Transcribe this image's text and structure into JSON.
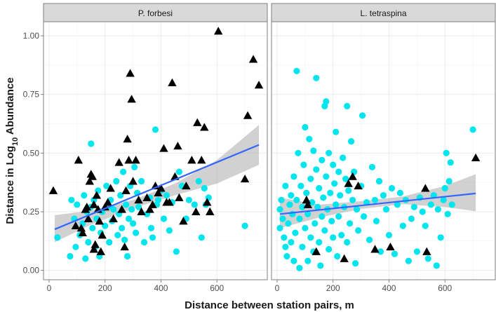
{
  "chart_data": {
    "type": "scatter",
    "facets": [
      "P. forbesi",
      "L. tetraspina"
    ],
    "xlabel": "Distance between station pairs, m",
    "ylabel": {
      "prefix": "Distance in Log",
      "subscript": "10",
      "suffix": " Abundance"
    },
    "xlim": [
      -20,
      780
    ],
    "ylim": [
      -0.04,
      1.06
    ],
    "x_ticks": [
      0,
      200,
      400,
      600
    ],
    "y_ticks": [
      0.0,
      0.25,
      0.5,
      0.75,
      1.0
    ],
    "y_tick_labels": [
      "0.00",
      "0.25",
      "0.50",
      "0.75",
      "1.00"
    ],
    "grid": true,
    "colors": {
      "circles": "#00e5ee",
      "triangles": "#000000",
      "fit_line": "#3366ff",
      "ribbon": "#b3b3b3",
      "strip_bg": "#d9d9d9",
      "panel_border": "#7f7f7f",
      "grid": "#ebebeb"
    },
    "panels": [
      {
        "name": "P. forbesi",
        "fit": {
          "x": [
            20,
            750
          ],
          "y": [
            0.175,
            0.535
          ]
        },
        "ribbon": {
          "x": [
            20,
            150,
            300,
            450,
            600,
            750
          ],
          "lo": [
            0.12,
            0.195,
            0.265,
            0.32,
            0.37,
            0.45
          ],
          "hi": [
            0.235,
            0.255,
            0.3,
            0.37,
            0.47,
            0.62
          ]
        },
        "circles": [
          [
            30,
            0.14
          ],
          [
            75,
            0.06
          ],
          [
            80,
            0.3
          ],
          [
            90,
            0.22
          ],
          [
            95,
            0.1
          ],
          [
            100,
            0.28
          ],
          [
            110,
            0.15
          ],
          [
            120,
            0.2
          ],
          [
            125,
            0.32
          ],
          [
            130,
            0.05
          ],
          [
            135,
            0.25
          ],
          [
            140,
            0.12
          ],
          [
            150,
            0.27
          ],
          [
            150,
            0.54
          ],
          [
            155,
            0.18
          ],
          [
            160,
            0.3
          ],
          [
            165,
            0.1
          ],
          [
            170,
            0.22
          ],
          [
            175,
            0.34
          ],
          [
            180,
            0.06
          ],
          [
            185,
            0.16
          ],
          [
            190,
            0.25
          ],
          [
            200,
            0.19
          ],
          [
            205,
            0.36
          ],
          [
            210,
            0.27
          ],
          [
            215,
            0.12
          ],
          [
            220,
            0.3
          ],
          [
            225,
            0.21
          ],
          [
            230,
            0.26
          ],
          [
            240,
            0.38
          ],
          [
            245,
            0.15
          ],
          [
            250,
            0.24
          ],
          [
            255,
            0.32
          ],
          [
            260,
            0.18
          ],
          [
            265,
            0.42
          ],
          [
            270,
            0.13
          ],
          [
            275,
            0.28
          ],
          [
            280,
            0.06
          ],
          [
            285,
            0.22
          ],
          [
            290,
            0.36
          ],
          [
            295,
            0.26
          ],
          [
            300,
            0.2
          ],
          [
            305,
            0.44
          ],
          [
            310,
            0.16
          ],
          [
            315,
            0.33
          ],
          [
            320,
            0.27
          ],
          [
            330,
            0.38
          ],
          [
            340,
            0.12
          ],
          [
            350,
            0.24
          ],
          [
            360,
            0.31
          ],
          [
            365,
            0.18
          ],
          [
            370,
            0.14
          ],
          [
            380,
            0.6
          ],
          [
            385,
            0.28
          ],
          [
            390,
            0.3
          ],
          [
            400,
            0.34
          ],
          [
            410,
            0.22
          ],
          [
            420,
            0.32
          ],
          [
            430,
            0.17
          ],
          [
            440,
            0.29
          ],
          [
            455,
            0.08
          ],
          [
            465,
            0.42
          ],
          [
            475,
            0.36
          ],
          [
            490,
            0.22
          ],
          [
            500,
            0.3
          ],
          [
            520,
            0.28
          ],
          [
            535,
            0.38
          ],
          [
            545,
            0.14
          ],
          [
            555,
            0.35
          ],
          [
            560,
            0.28
          ],
          [
            570,
            0.31
          ],
          [
            700,
            0.19
          ]
        ],
        "triangles": [
          [
            15,
            0.34
          ],
          [
            95,
            0.19
          ],
          [
            105,
            0.47
          ],
          [
            115,
            0.18
          ],
          [
            120,
            0.16
          ],
          [
            130,
            0.26
          ],
          [
            135,
            0.27
          ],
          [
            140,
            0.22
          ],
          [
            145,
            0.38
          ],
          [
            150,
            0.41
          ],
          [
            155,
            0.4
          ],
          [
            160,
            0.09
          ],
          [
            160,
            0.28
          ],
          [
            165,
            0.11
          ],
          [
            170,
            0.32
          ],
          [
            175,
            0.26
          ],
          [
            180,
            0.21
          ],
          [
            185,
            0.08
          ],
          [
            190,
            0.15
          ],
          [
            200,
            0.27
          ],
          [
            210,
            0.29
          ],
          [
            220,
            0.35
          ],
          [
            230,
            0.22
          ],
          [
            250,
            0.46
          ],
          [
            260,
            0.26
          ],
          [
            270,
            0.1
          ],
          [
            275,
            0.34
          ],
          [
            280,
            0.56
          ],
          [
            285,
            0.47
          ],
          [
            290,
            0.84
          ],
          [
            295,
            0.73
          ],
          [
            300,
            0.38
          ],
          [
            310,
            0.47
          ],
          [
            320,
            0.3
          ],
          [
            330,
            0.25
          ],
          [
            350,
            0.31
          ],
          [
            360,
            0.26
          ],
          [
            370,
            0.28
          ],
          [
            380,
            0.36
          ],
          [
            390,
            0.33
          ],
          [
            400,
            0.35
          ],
          [
            410,
            0.52
          ],
          [
            420,
            0.29
          ],
          [
            430,
            0.29
          ],
          [
            440,
            0.8
          ],
          [
            450,
            0.4
          ],
          [
            460,
            0.53
          ],
          [
            465,
            0.31
          ],
          [
            480,
            0.21
          ],
          [
            490,
            0.36
          ],
          [
            510,
            0.47
          ],
          [
            525,
            0.25
          ],
          [
            530,
            0.63
          ],
          [
            545,
            0.47
          ],
          [
            555,
            0.61
          ],
          [
            565,
            0.29
          ],
          [
            575,
            0.25
          ],
          [
            605,
            1.02
          ],
          [
            700,
            0.39
          ],
          [
            710,
            0.66
          ],
          [
            730,
            0.9
          ],
          [
            750,
            0.79
          ]
        ]
      },
      {
        "name": "L. tetraspina",
        "fit": {
          "x": [
            10,
            710
          ],
          "y": [
            0.24,
            0.328
          ]
        },
        "ribbon": {
          "x": [
            10,
            150,
            300,
            450,
            600,
            710
          ],
          "lo": [
            0.18,
            0.225,
            0.262,
            0.282,
            0.27,
            0.252
          ],
          "hi": [
            0.31,
            0.28,
            0.295,
            0.315,
            0.36,
            0.41
          ]
        },
        "circles": [
          [
            10,
            0.26
          ],
          [
            10,
            0.18
          ],
          [
            15,
            0.3
          ],
          [
            20,
            0.22
          ],
          [
            25,
            0.14
          ],
          [
            30,
            0.1
          ],
          [
            30,
            0.36
          ],
          [
            35,
            0.06
          ],
          [
            40,
            0.2
          ],
          [
            45,
            0.28
          ],
          [
            50,
            0.32
          ],
          [
            50,
            0.12
          ],
          [
            55,
            0.24
          ],
          [
            60,
            0.4
          ],
          [
            60,
            0.04
          ],
          [
            65,
            0.16
          ],
          [
            70,
            0.85
          ],
          [
            70,
            0.3
          ],
          [
            75,
            0.5
          ],
          [
            80,
            0.01
          ],
          [
            80,
            0.22
          ],
          [
            85,
            0.36
          ],
          [
            90,
            0.1
          ],
          [
            90,
            0.27
          ],
          [
            95,
            0.45
          ],
          [
            100,
            0.61
          ],
          [
            100,
            0.18
          ],
          [
            105,
            0.33
          ],
          [
            110,
            0.04
          ],
          [
            110,
            0.24
          ],
          [
            115,
            0.56
          ],
          [
            120,
            0.14
          ],
          [
            120,
            0.39
          ],
          [
            125,
            0.29
          ],
          [
            130,
            0.08
          ],
          [
            130,
            0.51
          ],
          [
            135,
            0.2
          ],
          [
            140,
            0.43
          ],
          [
            140,
            0.82
          ],
          [
            145,
            0.27
          ],
          [
            150,
            0.35
          ],
          [
            150,
            0.12
          ],
          [
            155,
            0.02
          ],
          [
            160,
            0.23
          ],
          [
            160,
            0.47
          ],
          [
            165,
            0.31
          ],
          [
            170,
            0.17
          ],
          [
            170,
            0.7
          ],
          [
            175,
            0.72
          ],
          [
            175,
            0.4
          ],
          [
            180,
            0.26
          ],
          [
            185,
            0.09
          ],
          [
            185,
            0.5
          ],
          [
            190,
            0.33
          ],
          [
            195,
            0.21
          ],
          [
            200,
            0.45
          ],
          [
            200,
            0.14
          ],
          [
            205,
            0.37
          ],
          [
            210,
            0.59
          ],
          [
            210,
            0.28
          ],
          [
            215,
            0.06
          ],
          [
            220,
            0.42
          ],
          [
            220,
            0.23
          ],
          [
            225,
            0.32
          ],
          [
            230,
            0.15
          ],
          [
            235,
            0.48
          ],
          [
            240,
            0.27
          ],
          [
            245,
            0.39
          ],
          [
            250,
            0.7
          ],
          [
            250,
            0.12
          ],
          [
            255,
            0.34
          ],
          [
            260,
            0.2
          ],
          [
            265,
            0.55
          ],
          [
            270,
            0.3
          ],
          [
            275,
            0.42
          ],
          [
            280,
            0.03
          ],
          [
            285,
            0.26
          ],
          [
            290,
            0.17
          ],
          [
            300,
            0.36
          ],
          [
            305,
            0.66
          ],
          [
            310,
            0.23
          ],
          [
            320,
            0.29
          ],
          [
            330,
            0.13
          ],
          [
            340,
            0.44
          ],
          [
            350,
            0.3
          ],
          [
            355,
            0.21
          ],
          [
            365,
            0.38
          ],
          [
            370,
            0.08
          ],
          [
            380,
            0.32
          ],
          [
            390,
            0.26
          ],
          [
            400,
            0.15
          ],
          [
            410,
            0.35
          ],
          [
            420,
            0.07
          ],
          [
            430,
            0.28
          ],
          [
            440,
            0.33
          ],
          [
            450,
            0.19
          ],
          [
            460,
            0.3
          ],
          [
            470,
            0.04
          ],
          [
            480,
            0.22
          ],
          [
            490,
            0.27
          ],
          [
            500,
            0.08
          ],
          [
            510,
            0.31
          ],
          [
            520,
            0.25
          ],
          [
            530,
            0.19
          ],
          [
            540,
            0.05
          ],
          [
            550,
            0.28
          ],
          [
            560,
            0.32
          ],
          [
            570,
            0.02
          ],
          [
            575,
            0.26
          ],
          [
            585,
            0.14
          ],
          [
            595,
            0.3
          ],
          [
            600,
            0.35
          ],
          [
            605,
            0.5
          ],
          [
            610,
            0.24
          ],
          [
            615,
            0.38
          ],
          [
            620,
            0.46
          ],
          [
            625,
            0.28
          ],
          [
            700,
            0.6
          ]
        ],
        "triangles": [
          [
            105,
            0.3
          ],
          [
            110,
            0.28
          ],
          [
            140,
            0.08
          ],
          [
            240,
            0.05
          ],
          [
            255,
            0.37
          ],
          [
            270,
            0.4
          ],
          [
            290,
            0.36
          ],
          [
            350,
            0.09
          ],
          [
            405,
            0.1
          ],
          [
            530,
            0.35
          ],
          [
            535,
            0.08
          ],
          [
            710,
            0.48
          ]
        ]
      }
    ]
  }
}
